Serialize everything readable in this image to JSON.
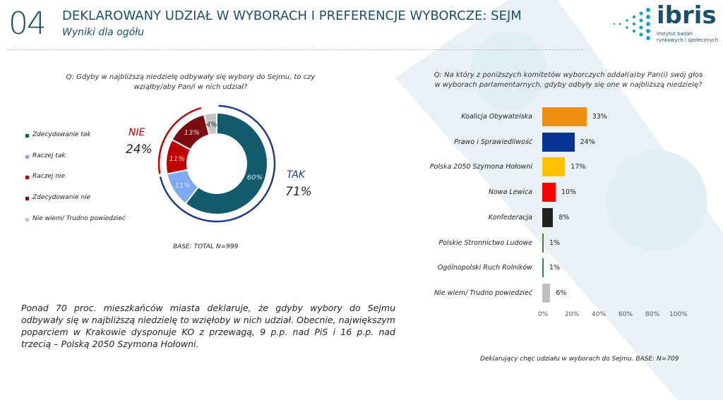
{
  "header": {
    "number": "04",
    "title": "DEKLAROWANY UDZIAŁ W WYBORACH I PREFERENCJE WYBORCZE: SEJM",
    "subtitle": "Wyniki dla ogółu"
  },
  "logo": {
    "word": "ibris",
    "tagline": "instytut badań rynkowych i społecznych"
  },
  "left": {
    "question": "Q: Gdyby w najbliższą niedzielę odbywały się wybory do Sejmu, to czy wziąłby/aby Pan/i w nich udział?",
    "nie_label": "NIE",
    "nie_value": "24%",
    "tak_label": "TAK",
    "tak_value": "71%",
    "base": "BASE: TOTAL N=999"
  },
  "summary": "Ponad 70 proc. mieszkańców miasta deklaruje, że gdyby wybory do Sejmu odbywały się w najbliższą niedzielę to wzięłoby w nich udział. Obecnie, największym poparciem w Krakowie dysponuje KO z przewagą, 9 p.p. nad PiS i 16 p.p. nad trzecią – Polską 2050 Szymona Hołowni.",
  "right": {
    "question": "Q: Na który z poniższych komitetów wyborczych oddał(a)by Pan(i) swój głos w wyborach parlamentarnych, gdyby odbyły się one w najbliższą niedzielę?",
    "base": "Deklarujący chęć udziału w wyborach do Sejmu. BASE: N=709"
  },
  "chart_data": [
    {
      "type": "pie",
      "variant": "donut",
      "title": "Q: Gdyby w najbliższą niedzielę odbywały się wybory do Sejmu, to czy wziąłby/aby Pan/i w nich udział?",
      "categories": [
        "Zdecydowanie tak",
        "Raczej tak",
        "Raczej nie",
        "Zdecydowanie nie",
        "Nie wiem/ Trudno powiedzieć"
      ],
      "values": [
        60,
        11,
        11,
        13,
        4
      ],
      "labels": [
        "60%",
        "11%",
        "11%",
        "13%",
        "4%"
      ],
      "colors": [
        "#125a6e",
        "#7faaef",
        "#c00000",
        "#7b0c12",
        "#c4c4c4"
      ],
      "groups": [
        {
          "name": "TAK",
          "value": 71,
          "color": "#1f3c8c"
        },
        {
          "name": "NIE",
          "value": 24,
          "color": "#c00000"
        }
      ],
      "legend": "left"
    },
    {
      "type": "bar",
      "orientation": "horizontal",
      "categories": [
        "Koalicja Obywatelska",
        "Prawo i Sprawiedliwość",
        "Polska 2050 Szymona Hołowni",
        "Nowa Lewica",
        "Konfederacja",
        "Polskie Stronnictwo Ludowe",
        "Ogólnopolski Ruch Rolników",
        "Nie wiem/ Trudno powiedzieć"
      ],
      "values": [
        33,
        24,
        17,
        10,
        8,
        1,
        1,
        6
      ],
      "labels": [
        "33%",
        "24%",
        "17%",
        "10%",
        "8%",
        "1%",
        "1%",
        "6%"
      ],
      "colors": [
        "#ee8f14",
        "#0b3394",
        "#ffc000",
        "#ff0000",
        "#222222",
        "#4f7a28",
        "#2e7d6b",
        "#c0c0c0"
      ],
      "xlim": [
        0,
        100
      ],
      "xticks": [
        "0%",
        "20%",
        "40%",
        "60%",
        "80%",
        "100%"
      ],
      "grid": false
    }
  ]
}
